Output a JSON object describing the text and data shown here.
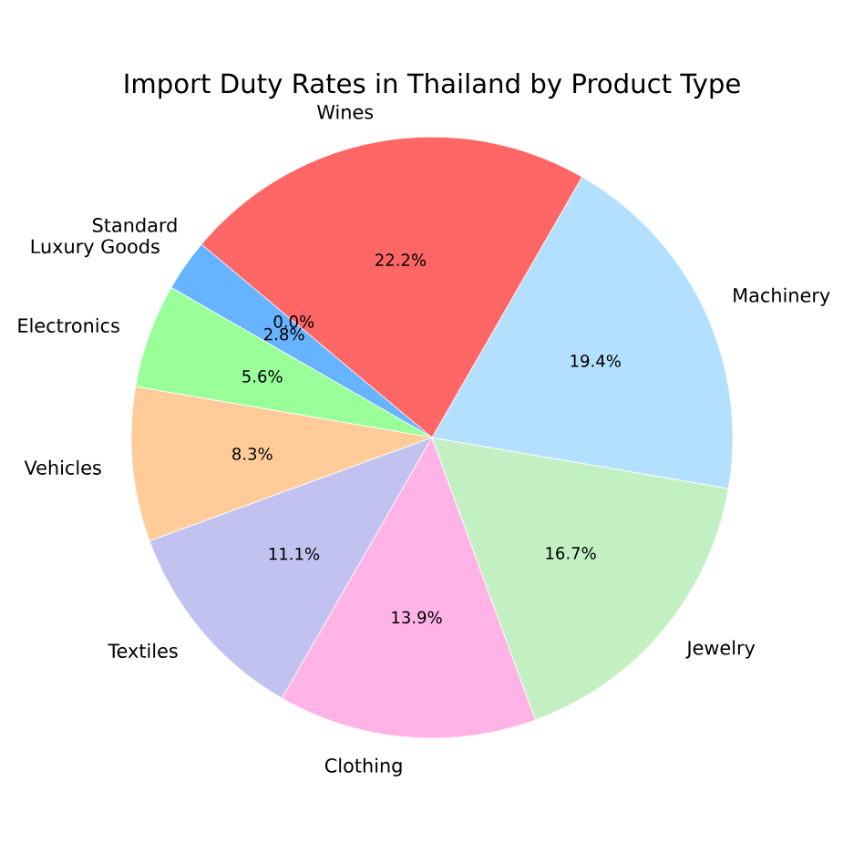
{
  "chart_data": {
    "type": "pie",
    "title": "Import Duty Rates in Thailand by Product Type",
    "categories": [
      "Standard",
      "Luxury Goods",
      "Electronics",
      "Vehicles",
      "Textiles",
      "Clothing",
      "Jewelry",
      "Machinery",
      "Wines"
    ],
    "values": [
      0,
      2.8,
      5.6,
      8.3,
      11.1,
      13.9,
      16.7,
      19.4,
      22.2
    ],
    "value_labels": [
      "0.0%",
      "2.8%",
      "5.6%",
      "8.3%",
      "11.1%",
      "13.9%",
      "16.7%",
      "19.4%",
      "22.2%"
    ],
    "colors": [
      "#ff9999",
      "#66b3ff",
      "#99ff99",
      "#ffcc99",
      "#c2c2f0",
      "#ffb3e6",
      "#c2f0c2",
      "#b3e0ff",
      "#ff6666"
    ]
  }
}
